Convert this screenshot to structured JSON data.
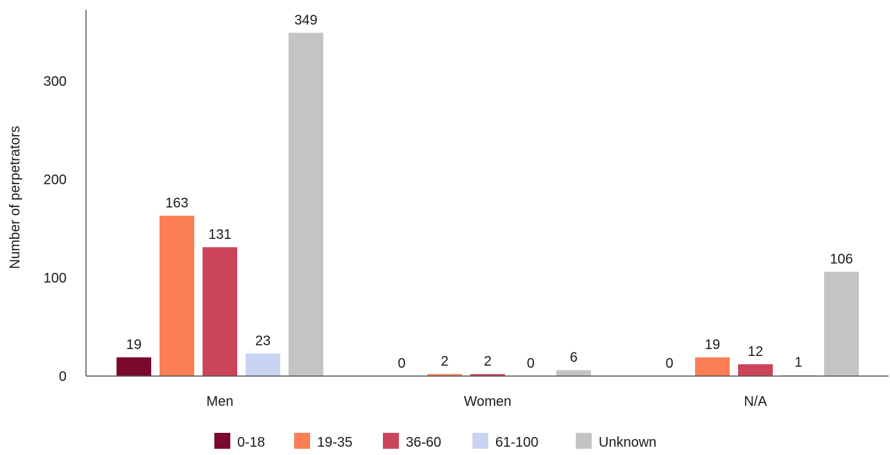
{
  "chart_data": {
    "type": "bar",
    "ylabel": "Number of perpetrators",
    "xlabel": "",
    "ylim": [
      0,
      350
    ],
    "yticks": [
      0,
      100,
      200,
      300
    ],
    "categories": [
      "Men",
      "Women",
      "N/A"
    ],
    "series": [
      {
        "name": "0-18",
        "color": "#7a0a2c",
        "values": [
          19,
          0,
          0
        ]
      },
      {
        "name": "19-35",
        "color": "#fc7e55",
        "values": [
          163,
          2,
          19
        ]
      },
      {
        "name": "36-60",
        "color": "#cc4459",
        "values": [
          131,
          2,
          12
        ]
      },
      {
        "name": "61-100",
        "color": "#c8d4f2",
        "values": [
          23,
          0,
          1
        ]
      },
      {
        "name": "Unknown",
        "color": "#c4c4c4",
        "values": [
          349,
          6,
          106
        ]
      }
    ],
    "grid": false,
    "legend_position": "bottom-center",
    "axis_color": "#555555"
  }
}
